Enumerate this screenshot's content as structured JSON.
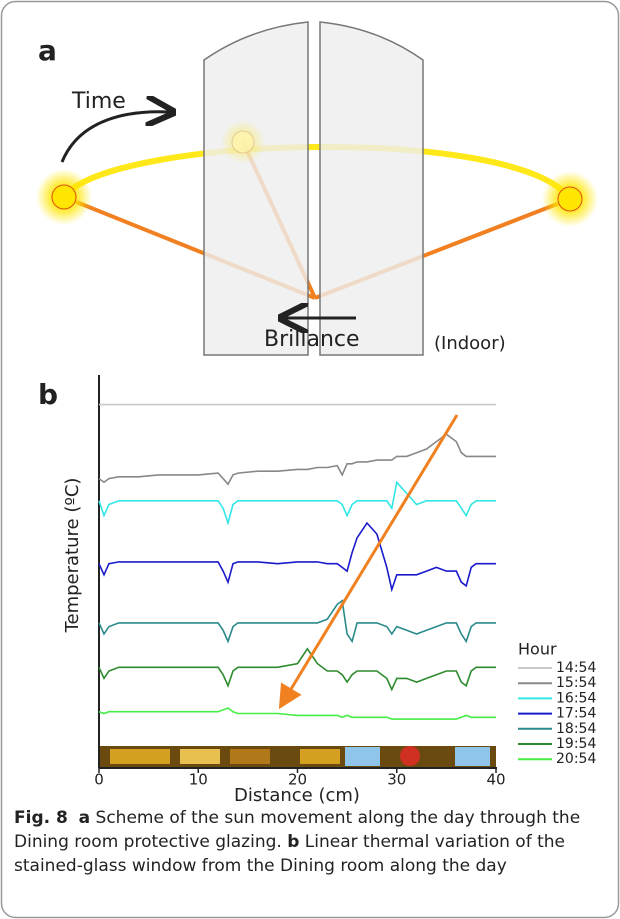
{
  "panel_a": {
    "label": "a",
    "time_label": "Time",
    "brillance_label": "Brillance",
    "indoor_label": "(Indoor)"
  },
  "chart_data": {
    "type": "line",
    "panel_label": "b",
    "ylabel": "Temperature (ºC)",
    "xlabel": "Distance (cm)",
    "xlim": [
      0,
      40
    ],
    "xticks": [
      0,
      10,
      20,
      30,
      40
    ],
    "ylim": [
      0,
      100
    ],
    "legend_title": "Hour",
    "legend": "right",
    "x": [
      0,
      0.5,
      1,
      2,
      4,
      6,
      8,
      10,
      12,
      12.5,
      13,
      13.5,
      14,
      16,
      18,
      20,
      21,
      22,
      23,
      24,
      24.5,
      25,
      25.5,
      26,
      27,
      28,
      29,
      29.5,
      30,
      31,
      32,
      33,
      34,
      35,
      36,
      36.5,
      37,
      37.5,
      38,
      40
    ],
    "series": [
      {
        "name": "14:54",
        "color": "#c8c8c8",
        "values": [
          92,
          92,
          92,
          92,
          92,
          92,
          92,
          92,
          92,
          92,
          92,
          92,
          92,
          92,
          92,
          92,
          92,
          92,
          92,
          92,
          92,
          92,
          92,
          92,
          92,
          92,
          92,
          92,
          92,
          92,
          92,
          92,
          92,
          92,
          92,
          92,
          92,
          92,
          92,
          92
        ]
      },
      {
        "name": "15:54",
        "color": "#888888",
        "values": [
          72,
          71,
          72,
          72.5,
          72.5,
          73,
          73,
          73,
          73.5,
          72,
          70.5,
          73,
          73.5,
          74,
          74,
          74.5,
          74.5,
          75,
          75,
          75.5,
          73,
          76,
          76,
          76.5,
          76.5,
          77,
          77,
          77,
          78,
          78,
          79,
          80,
          82,
          84,
          82,
          79,
          78,
          78,
          78,
          78
        ]
      },
      {
        "name": "16:54",
        "color": "#33e6e6",
        "values": [
          66,
          62,
          65,
          66,
          66,
          66,
          66,
          66,
          66,
          64,
          60,
          65,
          66,
          66,
          66,
          66,
          66,
          66,
          66,
          66,
          65,
          62,
          65,
          66,
          66,
          66,
          66,
          64,
          71,
          68,
          65,
          66,
          66,
          66,
          66,
          64,
          62,
          65,
          66,
          66
        ]
      },
      {
        "name": "17:54",
        "color": "#1a1acc",
        "values": [
          49,
          46,
          49,
          49.5,
          49.5,
          49.5,
          49.5,
          49.5,
          49.5,
          47,
          44,
          49,
          49.5,
          49.5,
          49,
          49.5,
          49.5,
          49.5,
          49,
          49,
          48,
          47,
          52,
          56,
          60,
          57,
          48,
          42,
          46,
          46,
          46,
          47,
          48,
          47,
          47,
          44,
          43,
          48,
          49,
          49
        ]
      },
      {
        "name": "18:54",
        "color": "#2a8a8a",
        "values": [
          33,
          30,
          32,
          33,
          33,
          33,
          33,
          33,
          33,
          31,
          28,
          32,
          33,
          33,
          33,
          33,
          33,
          33,
          34,
          38,
          39,
          30,
          28,
          33,
          33,
          33,
          32,
          30,
          32,
          31,
          30,
          31,
          32,
          33,
          33,
          30,
          28,
          32,
          33,
          33
        ]
      },
      {
        "name": "19:54",
        "color": "#2e8a2e",
        "values": [
          21,
          18,
          20,
          21,
          21,
          21,
          21,
          21,
          21,
          19,
          16,
          20,
          21,
          21,
          21,
          22,
          26,
          22,
          20,
          20,
          19,
          17,
          19,
          20,
          20,
          20,
          18,
          15,
          18,
          18,
          17,
          18,
          19,
          20,
          20,
          17,
          16,
          20,
          21,
          21
        ]
      },
      {
        "name": "20:54",
        "color": "#44ee44",
        "values": [
          9,
          8.5,
          9,
          9,
          9,
          9,
          9,
          9,
          9,
          9.5,
          10,
          9,
          8.5,
          8.5,
          8.5,
          8,
          8,
          8,
          8,
          8,
          7.5,
          8,
          7.5,
          7.5,
          7.5,
          7.5,
          7.5,
          7,
          7,
          7,
          7,
          7,
          7,
          7,
          7,
          7.5,
          8,
          7.5,
          7.5,
          7.5
        ]
      }
    ]
  },
  "caption": {
    "fig": "Fig. 8",
    "a": "a",
    "text_a": " Scheme of the sun movement along the day through the Dining room protective glazing. ",
    "b": "b",
    "text_b": " Linear thermal variation of the stained-glass window from the Dining room along the day"
  }
}
